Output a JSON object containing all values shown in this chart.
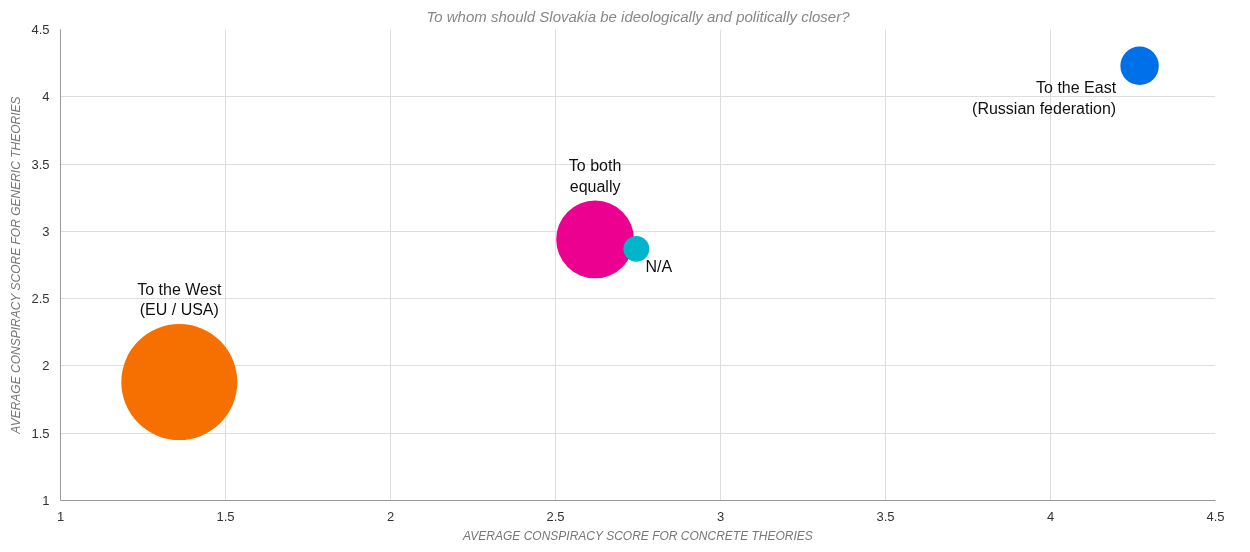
{
  "chart_data": {
    "type": "bubble",
    "title": "To whom should Slovakia be ideologically and politically closer?",
    "xlabel": "AVERAGE CONSPIRACY SCORE FOR CONCRETE THEORIES",
    "ylabel": "AVERAGE CONSPIRACY SCORE FOR GENERIC THEORIES",
    "xlim": [
      1,
      4.5
    ],
    "xticks": [
      1,
      1.5,
      2,
      2.5,
      3,
      3.5,
      4,
      4.5
    ],
    "ylim": [
      1,
      4.5
    ],
    "yticks": [
      1,
      1.5,
      2,
      2.5,
      3,
      3.5,
      4,
      4.5
    ],
    "grid": true,
    "series": [
      {
        "name": "To the West\n(EU / USA)",
        "color": "#f57000",
        "x": [
          1.36
        ],
        "values": [
          1.88
        ],
        "sizes": [
          1
        ]
      },
      {
        "name": "To both\nequally",
        "color": "#ec0090",
        "x": [
          2.62
        ],
        "values": [
          2.94
        ],
        "sizes": [
          0.45
        ]
      },
      {
        "name": "N/A",
        "color": "#00b4cc",
        "x": [
          2.745
        ],
        "values": [
          2.87
        ],
        "sizes": [
          0.05
        ]
      },
      {
        "name": "To the East\n(Russian federation)",
        "color": "#0070e8",
        "x": [
          4.27
        ],
        "values": [
          4.23
        ],
        "sizes": [
          0.11
        ]
      }
    ]
  }
}
